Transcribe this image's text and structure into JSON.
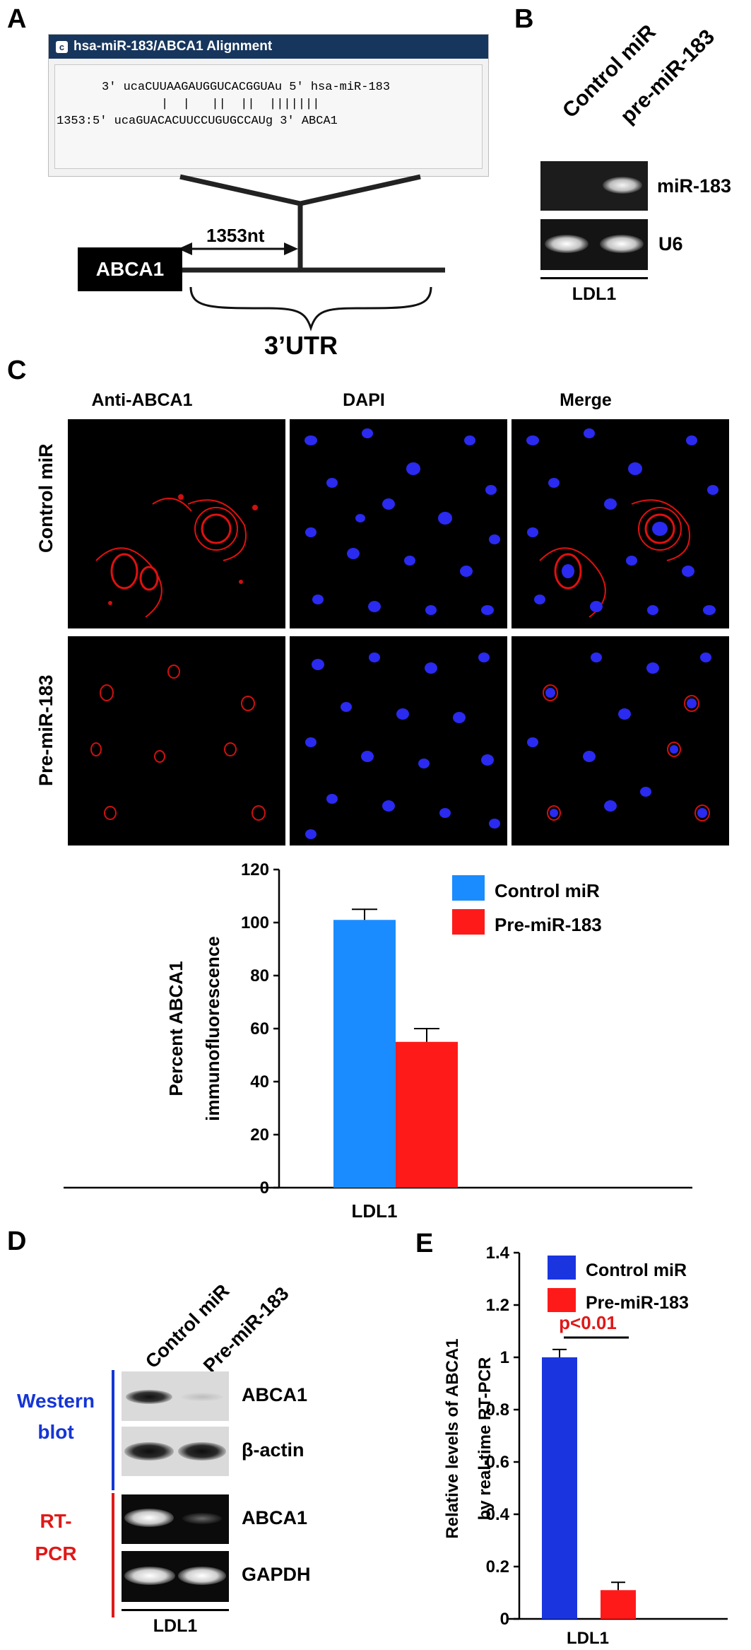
{
  "panel_a": {
    "letter": "A",
    "box_title": "hsa-miR-183/ABCA1 Alignment",
    "mirna_line": "3' ucaCUUAAGAUGGUCACGGUAu 5' hsa-miR-183",
    "bars_line": "|  |   ||  ||  |||||||",
    "target_line": "1353:5' ucaGUACACUUCCUGUGCCAUg 3' ABCA1",
    "gene_label": "ABCA1",
    "distance_label": "1353nt",
    "utr_label": "3’UTR"
  },
  "panel_b": {
    "letter": "B",
    "lane_labels": [
      "Control miR",
      "pre-miR-183"
    ],
    "row_labels": [
      "miR-183",
      "U6"
    ],
    "cell_line": "LDL1"
  },
  "panel_c": {
    "letter": "C",
    "column_labels": [
      "Anti-ABCA1",
      "DAPI",
      "Merge"
    ],
    "row_labels": [
      "Control miR",
      "Pre-miR-183"
    ]
  },
  "panel_d": {
    "letter": "D",
    "lane_labels": [
      "Control miR",
      "Pre-miR-183"
    ],
    "group_labels": [
      {
        "text": "Western",
        "color": "#1535d6"
      },
      {
        "text": "blot",
        "color": "#1535d6"
      },
      {
        "text": "RT-",
        "color": "#e01818"
      },
      {
        "text": "PCR",
        "color": "#e01818"
      }
    ],
    "row_labels": [
      "ABCA1",
      "β-actin",
      "ABCA1",
      "GAPDH"
    ],
    "cell_line": "LDL1"
  },
  "panel_e": {
    "letter": "E"
  },
  "chart_data": [
    {
      "type": "bar",
      "panel": "C",
      "categories": [
        "LDL1"
      ],
      "series": [
        {
          "name": "Control miR",
          "values": [
            101
          ],
          "error": [
            4
          ],
          "color": "#1a8cff"
        },
        {
          "name": "Pre-miR-183",
          "values": [
            55
          ],
          "error": [
            5
          ],
          "color": "#ff1a1a"
        }
      ],
      "ylabel": "Percent ABCA1 immunofluorescence",
      "ylabel_lines": [
        "Percent ABCA1",
        "immunofluorescence"
      ],
      "xlabel": "LDL1",
      "ylim": [
        0,
        120
      ],
      "yticks": [
        "0",
        "20",
        "40",
        "60",
        "80",
        "100",
        "120"
      ],
      "legend": "top-right",
      "grid": false
    },
    {
      "type": "bar",
      "panel": "E",
      "categories": [
        "LDL1"
      ],
      "series": [
        {
          "name": "Control miR",
          "values": [
            1.0
          ],
          "error": [
            0.03
          ],
          "color": "#1a35e0"
        },
        {
          "name": "Pre-miR-183",
          "values": [
            0.11
          ],
          "error": [
            0.03
          ],
          "color": "#ff1a1a"
        }
      ],
      "ylabel": "Relative levels of ABCA1 by real-time RT-PCR",
      "ylabel_lines": [
        "Relative levels of ABCA1",
        "by real-time RT-PCR"
      ],
      "xlabel": "LDL1",
      "ylim": [
        0,
        1.4
      ],
      "yticks": [
        "0",
        "0.2",
        "0.4",
        "0.6",
        "0.8",
        "1",
        "1.2",
        "1.4"
      ],
      "annotation": "p<0.01",
      "annotation_color": "#e01818",
      "legend": "top-right",
      "grid": false
    }
  ]
}
